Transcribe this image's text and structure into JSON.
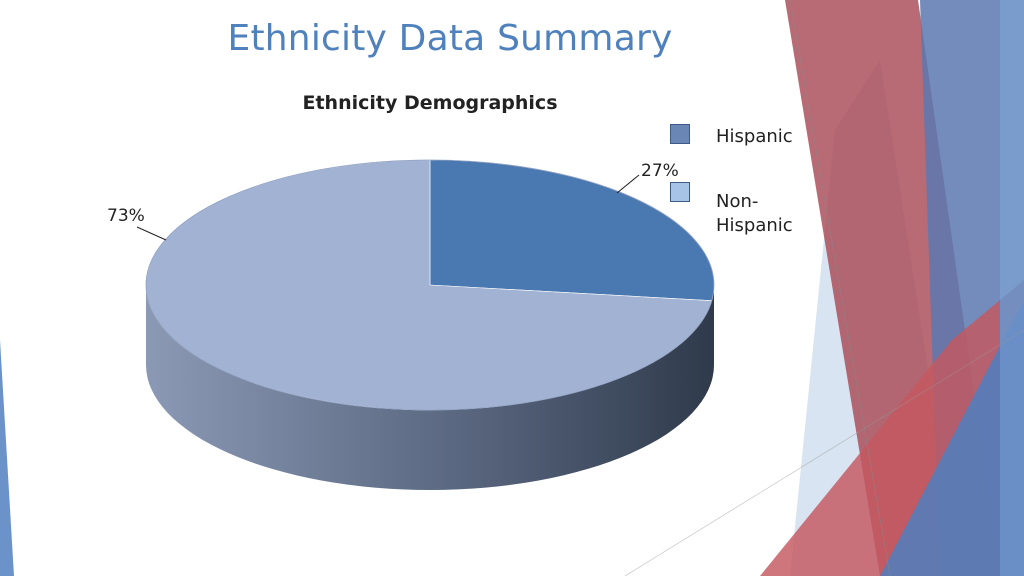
{
  "slide": {
    "title": "Ethnicity Data Summary"
  },
  "colors": {
    "hispanic": "#4a78b0",
    "non_hispanic": "#a1b2d3",
    "title": "#4f81bd",
    "deco_red": "#b5454d",
    "deco_blue": "#4f81bd"
  },
  "chart_data": {
    "type": "pie",
    "style": "3d",
    "title": "Ethnicity Demographics",
    "categories": [
      "Hispanic",
      "Non-Hispanic"
    ],
    "values": [
      27,
      73
    ],
    "data_labels": [
      "27%",
      "73%"
    ],
    "legend": {
      "position": "right",
      "entries": [
        "Hispanic",
        "Non-Hispanic"
      ]
    }
  }
}
